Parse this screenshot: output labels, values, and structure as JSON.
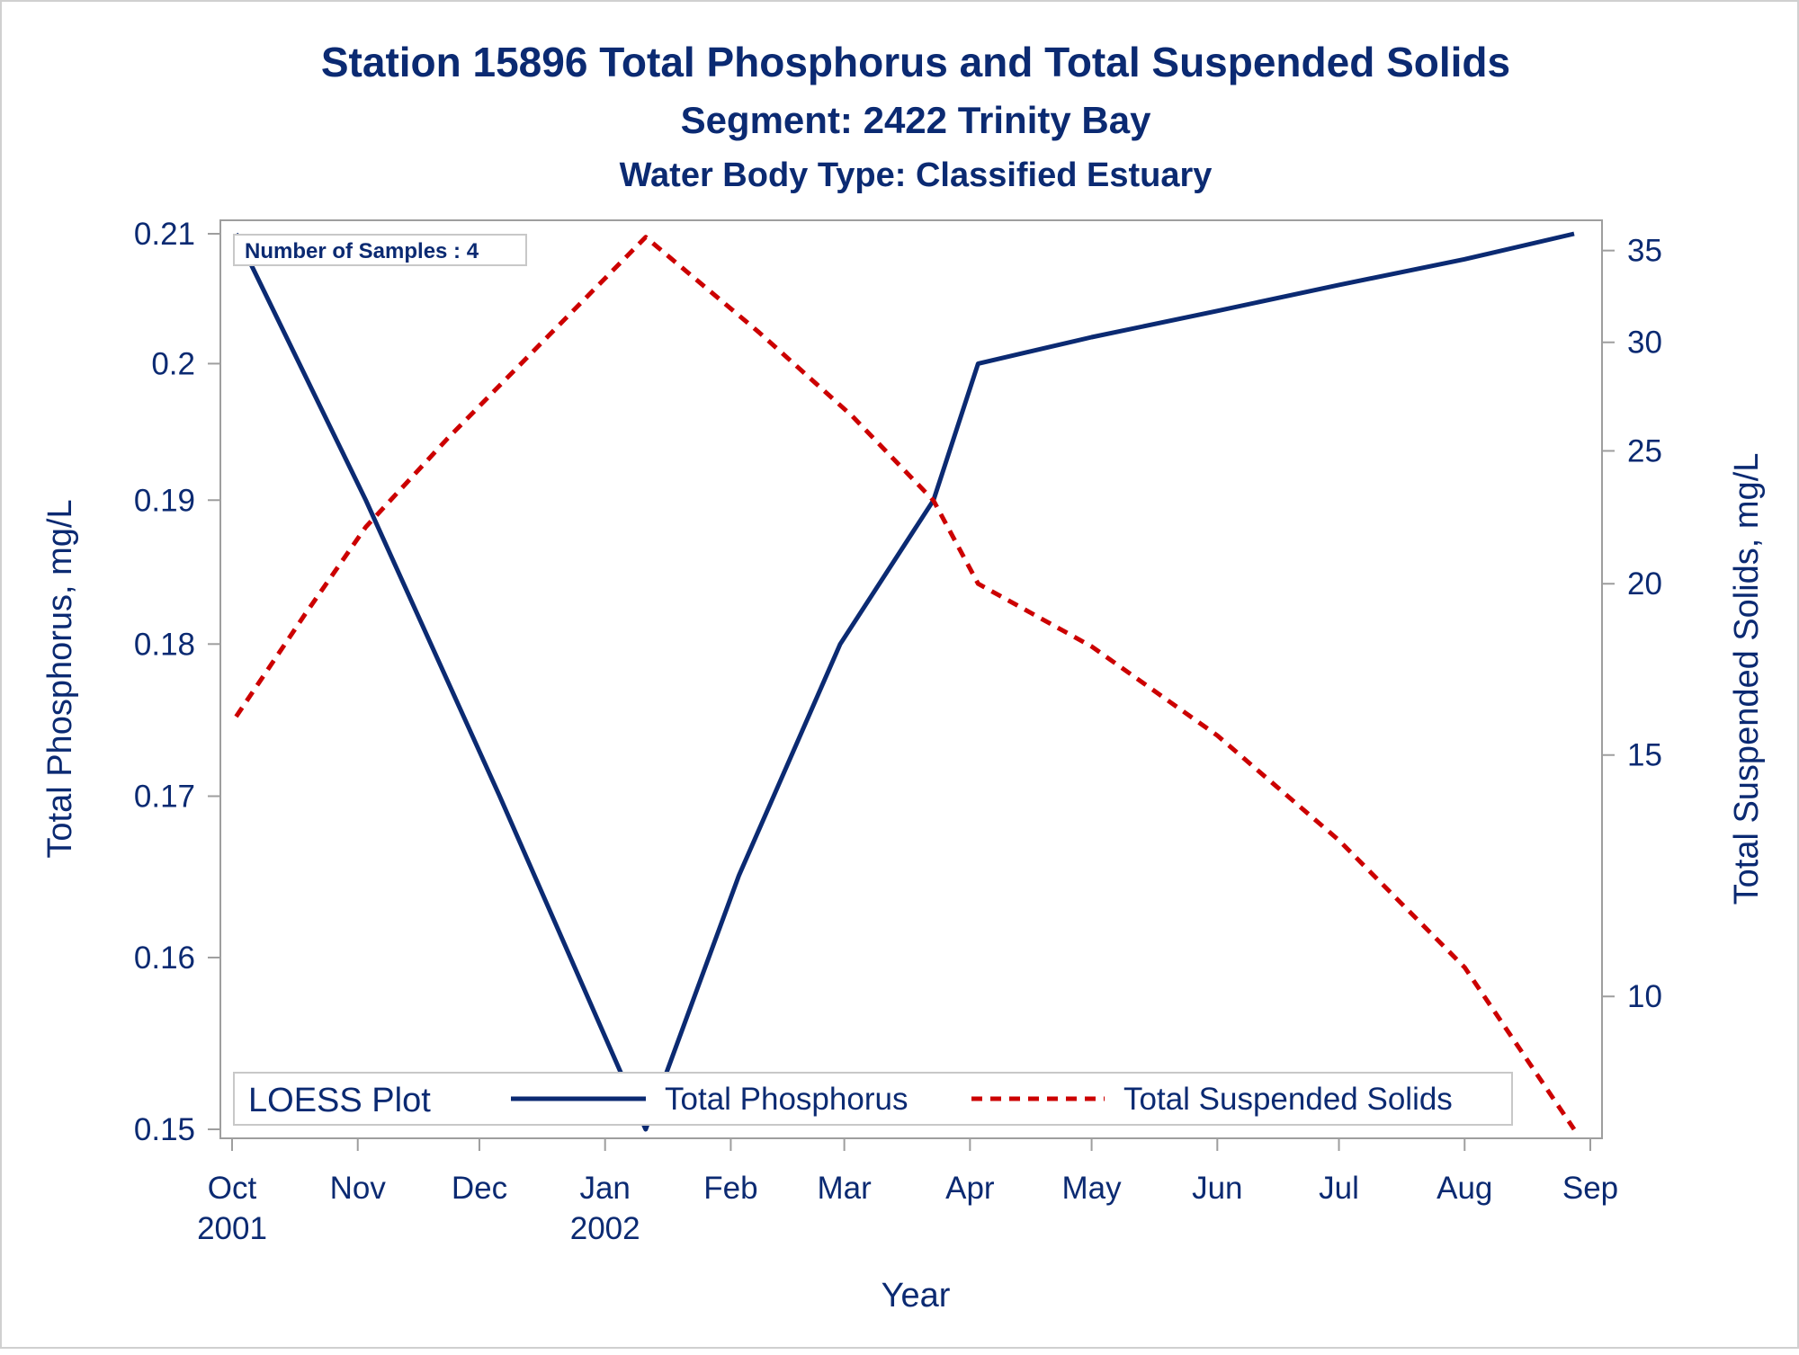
{
  "chart_data": {
    "type": "line",
    "title": "Station 15896  Total Phosphorus and Total Suspended Solids",
    "subtitle": "Segment: 2422  Trinity Bay",
    "subtitle2": "Water Body Type: Classified Estuary",
    "xlabel": "Year",
    "ylabel": "Total Phosphorus, mg/L",
    "y2label": "Total Suspended Solids, mg/L",
    "annotation": "Number of Samples : 4",
    "legend_title": "LOESS Plot",
    "legend_position": "bottom-inside",
    "grid": false,
    "xlim": [
      "2001-10-01",
      "2002-09-01"
    ],
    "ylim": [
      0.15,
      0.21
    ],
    "y2lim": [
      8.0,
      36.0
    ],
    "y_scale": "log",
    "y2_scale": "log",
    "x_ticks": [
      {
        "date": "2001-10-01",
        "label": "Oct",
        "year": "2001"
      },
      {
        "date": "2001-11-01",
        "label": "Nov",
        "year": ""
      },
      {
        "date": "2001-12-01",
        "label": "Dec",
        "year": ""
      },
      {
        "date": "2002-01-01",
        "label": "Jan",
        "year": "2002"
      },
      {
        "date": "2002-02-01",
        "label": "Feb",
        "year": ""
      },
      {
        "date": "2002-03-01",
        "label": "Mar",
        "year": ""
      },
      {
        "date": "2002-04-01",
        "label": "Apr",
        "year": ""
      },
      {
        "date": "2002-05-01",
        "label": "May",
        "year": ""
      },
      {
        "date": "2002-06-01",
        "label": "Jun",
        "year": ""
      },
      {
        "date": "2002-07-01",
        "label": "Jul",
        "year": ""
      },
      {
        "date": "2002-08-01",
        "label": "Aug",
        "year": ""
      },
      {
        "date": "2002-09-01",
        "label": "Sep",
        "year": ""
      }
    ],
    "y_ticks": [
      0.15,
      0.16,
      0.17,
      0.18,
      0.19,
      0.2,
      0.21
    ],
    "y_tick_labels": [
      "0.15",
      "0.16",
      "0.17",
      "0.18",
      "0.19",
      "0.2",
      "0.21"
    ],
    "y2_ticks": [
      10,
      15,
      20,
      25,
      30,
      35
    ],
    "series": [
      {
        "name": "Total Phosphorus",
        "axis": "y",
        "color": "#0b2a72",
        "dash": "solid",
        "points": [
          {
            "x": "2001-10-02",
            "y": 0.21
          },
          {
            "x": "2001-11-03",
            "y": 0.19
          },
          {
            "x": "2001-12-06",
            "y": 0.17
          },
          {
            "x": "2002-01-11",
            "y": 0.15
          },
          {
            "x": "2002-02-03",
            "y": 0.165
          },
          {
            "x": "2002-02-28",
            "y": 0.18
          },
          {
            "x": "2002-03-23",
            "y": 0.19
          },
          {
            "x": "2002-04-03",
            "y": 0.2
          },
          {
            "x": "2002-05-01",
            "y": 0.202
          },
          {
            "x": "2002-06-01",
            "y": 0.204
          },
          {
            "x": "2002-07-01",
            "y": 0.206
          },
          {
            "x": "2002-08-01",
            "y": 0.208
          },
          {
            "x": "2002-08-28",
            "y": 0.21
          }
        ]
      },
      {
        "name": "Total Suspended Solids",
        "axis": "y2",
        "color": "#cc0000",
        "dash": "dashed",
        "points": [
          {
            "x": "2001-10-02",
            "y": 16.0
          },
          {
            "x": "2001-10-19",
            "y": 19.0
          },
          {
            "x": "2001-11-03",
            "y": 22.0
          },
          {
            "x": "2001-11-23",
            "y": 25.5
          },
          {
            "x": "2001-12-14",
            "y": 29.5
          },
          {
            "x": "2002-01-11",
            "y": 35.8
          },
          {
            "x": "2002-02-08",
            "y": 30.5
          },
          {
            "x": "2002-03-03",
            "y": 26.5
          },
          {
            "x": "2002-03-23",
            "y": 23.0
          },
          {
            "x": "2002-04-03",
            "y": 20.0
          },
          {
            "x": "2002-05-01",
            "y": 18.0
          },
          {
            "x": "2002-06-01",
            "y": 15.5
          },
          {
            "x": "2002-07-01",
            "y": 13.0
          },
          {
            "x": "2002-08-01",
            "y": 10.5
          },
          {
            "x": "2002-08-28",
            "y": 8.0
          }
        ]
      }
    ]
  }
}
